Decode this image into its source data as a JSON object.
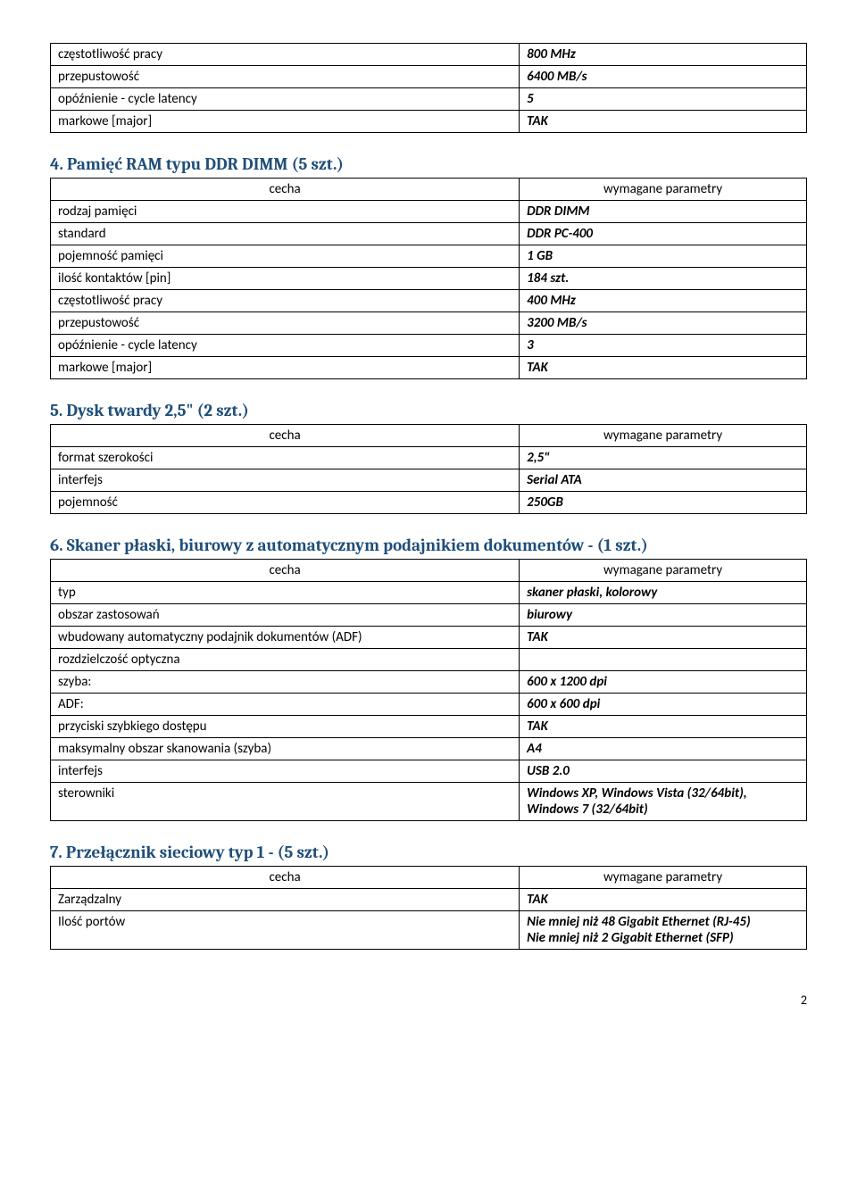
{
  "table0": {
    "rows": [
      [
        "częstotliwość pracy",
        "800 MHz"
      ],
      [
        "przepustowość",
        "6400 MB/s"
      ],
      [
        "opóźnienie - cycle latency",
        "5"
      ],
      [
        "markowe [major]",
        "TAK"
      ]
    ]
  },
  "section4": {
    "title": "4. Pamięć RAM typu DDR DIMM (5 szt.)",
    "header": {
      "left": "cecha",
      "right": "wymagane parametry"
    },
    "rows": [
      [
        "rodzaj pamięci",
        "DDR DIMM"
      ],
      [
        "standard",
        "DDR PC-400"
      ],
      [
        "pojemność pamięci",
        "1 GB"
      ],
      [
        "ilość kontaktów [pin]",
        "184 szt."
      ],
      [
        "częstotliwość pracy",
        "400 MHz"
      ],
      [
        "przepustowość",
        "3200 MB/s"
      ],
      [
        "opóźnienie - cycle latency",
        "3"
      ],
      [
        "markowe [major]",
        "TAK"
      ]
    ]
  },
  "section5": {
    "title": "5. Dysk twardy 2,5\" (2 szt.)",
    "header": {
      "left": "cecha",
      "right": "wymagane parametry"
    },
    "rows": [
      [
        "format szerokości",
        "2,5\""
      ],
      [
        "interfejs",
        "Serial ATA"
      ],
      [
        "pojemność",
        "250GB"
      ]
    ]
  },
  "section6": {
    "title": "6. Skaner płaski, biurowy z automatycznym podajnikiem dokumentów - (1 szt.)",
    "header": {
      "left": "cecha",
      "right": "wymagane parametry"
    },
    "rows": [
      [
        "typ",
        "skaner płaski, kolorowy"
      ],
      [
        "obszar zastosowań",
        "biurowy"
      ],
      [
        "wbudowany automatyczny podajnik dokumentów (ADF)",
        "TAK"
      ],
      [
        "rozdzielczość optyczna",
        ""
      ],
      [
        "szyba:",
        "600 x 1200 dpi"
      ],
      [
        "ADF:",
        "600 x 600 dpi"
      ],
      [
        "przyciski szybkiego dostępu",
        "TAK"
      ],
      [
        "maksymalny obszar skanowania (szyba)",
        "A4"
      ],
      [
        "interfejs",
        "USB 2.0"
      ],
      [
        "sterowniki",
        "Windows XP, Windows Vista (32/64bit), Windows 7 (32/64bit)"
      ]
    ]
  },
  "section7": {
    "title": "7. Przełącznik sieciowy typ 1 - (5 szt.)",
    "header": {
      "left": "cecha",
      "right": "wymagane parametry"
    },
    "rows": [
      [
        "Zarządzalny",
        "TAK"
      ],
      [
        "Ilość portów",
        "Nie mniej niż 48 Gigabit Ethernet (RJ-45)\nNie mniej niż 2 Gigabit Ethernet (SFP)"
      ]
    ]
  },
  "page_number": "2"
}
